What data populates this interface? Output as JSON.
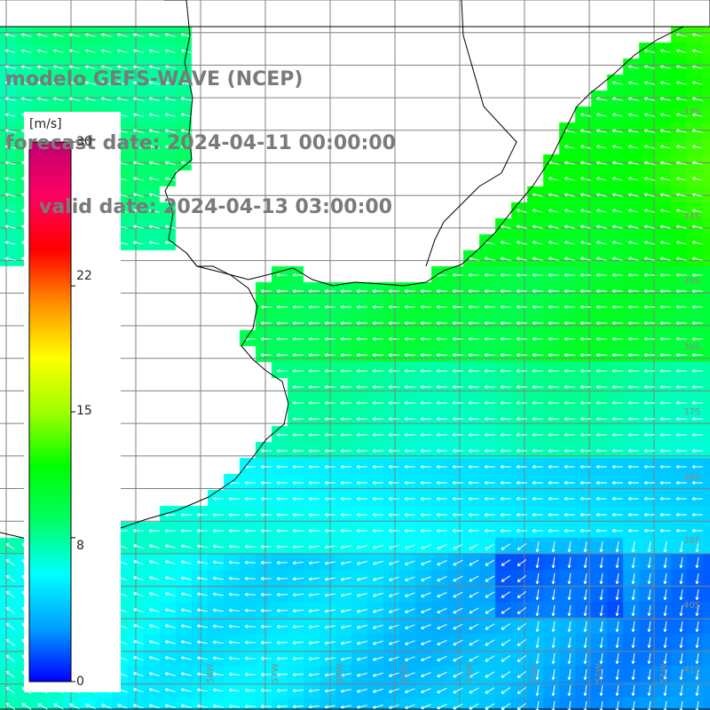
{
  "titles": {
    "line1": "modelo GEFS-WAVE (NCEP)",
    "line2": "forecast date: 2024-04-11 00:00:00",
    "line3": "valid date: 2024-04-13 03:00:00"
  },
  "colorbar": {
    "unit": "[m/s]",
    "ticks": [
      "30",
      "22",
      "15",
      "8",
      "0"
    ],
    "tick_values": [
      30,
      22,
      15,
      8,
      0
    ],
    "min": 0,
    "max": 30,
    "colors": [
      "#0000ff",
      "#00a0ff",
      "#00ffff",
      "#00ff60",
      "#00ff00",
      "#a0ff00",
      "#ffff00",
      "#ff9000",
      "#ff0000",
      "#ff0060",
      "#c00070"
    ]
  },
  "map": {
    "lon_range": [
      -61,
      -50
    ],
    "lat_range": [
      -41.5,
      -29.5
    ],
    "grid_lon": [
      -60,
      -59,
      -58,
      -57,
      -56,
      -55,
      -54,
      -53,
      -52,
      -51,
      -50
    ],
    "grid_lat": [
      -30,
      -30.5,
      -31,
      -31.5,
      -32,
      -32.5,
      -33,
      -33.5,
      -34,
      -34.5,
      -35,
      -35.5,
      -36,
      -36.5,
      -37,
      -37.5,
      -38,
      -38.5,
      -39,
      -39.5,
      -40,
      -40.5,
      -41
    ],
    "lat_labels": [
      "33S",
      "34S",
      "35S",
      "36S",
      "37S",
      "38S",
      "39S",
      "40S",
      "41S"
    ],
    "lon_labels": [
      "58W",
      "57W",
      "56W",
      "55W",
      "54W",
      "53W",
      "52W",
      "51W"
    ],
    "ocean_color": "#ffffff",
    "land_color": "#ffffff",
    "coast_color": "#000000",
    "grid_color": "#808080",
    "arrow_color": "#ffffff",
    "field": "wind speed (m/s) with direction arrows"
  }
}
